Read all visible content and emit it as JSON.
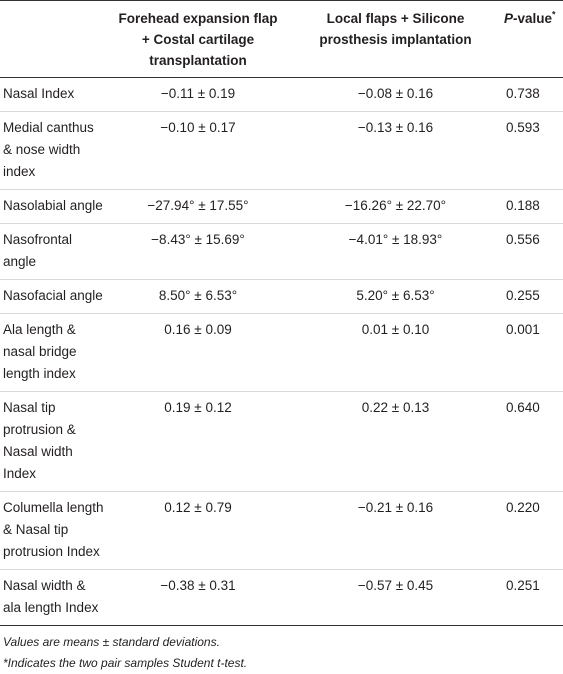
{
  "table": {
    "header": [
      {
        "lines": []
      },
      {
        "lines": [
          "Forehead expansion flap",
          "+ Costal cartilage",
          "transplantation"
        ]
      },
      {
        "lines": [
          "Local flaps + Silicone",
          "prosthesis implantation"
        ]
      },
      {
        "italic": "P",
        "rest": "-value",
        "sup": "*"
      }
    ],
    "rows": [
      {
        "label": [
          "Nasal Index"
        ],
        "a": "−0.11 ± 0.19",
        "b": "−0.08 ± 0.16",
        "p": "0.738"
      },
      {
        "label": [
          "Medial canthus",
          "& nose width",
          "index"
        ],
        "a": "−0.10 ± 0.17",
        "b": "−0.13 ± 0.16",
        "p": "0.593"
      },
      {
        "label": [
          "Nasolabial angle"
        ],
        "a": "−27.94° ± 17.55°",
        "b": "−16.26° ± 22.70°",
        "p": "0.188"
      },
      {
        "label": [
          "Nasofrontal",
          "angle"
        ],
        "a": "−8.43° ± 15.69°",
        "b": "−4.01° ± 18.93°",
        "p": "0.556"
      },
      {
        "label": [
          "Nasofacial angle"
        ],
        "a": "8.50° ± 6.53°",
        "b": "5.20° ± 6.53°",
        "p": "0.255"
      },
      {
        "label": [
          "Ala length &",
          "nasal bridge",
          "length index"
        ],
        "a": "0.16 ± 0.09",
        "b": "0.01 ± 0.10",
        "p": "0.001"
      },
      {
        "label": [
          "Nasal tip",
          "protrusion &",
          "Nasal width",
          "Index"
        ],
        "a": "0.19 ± 0.12",
        "b": "0.22 ± 0.13",
        "p": "0.640"
      },
      {
        "label": [
          "Columella length",
          "& Nasal tip",
          "protrusion Index"
        ],
        "a": "0.12 ± 0.79",
        "b": "−0.21 ± 0.16",
        "p": "0.220"
      },
      {
        "label": [
          "Nasal width &",
          "ala length Index"
        ],
        "a": "−0.38 ± 0.31",
        "b": "−0.57 ± 0.45",
        "p": "0.251"
      }
    ],
    "notes": [
      "Values are means ± standard deviations.",
      "*Indicates the two pair samples Student t-test."
    ]
  }
}
